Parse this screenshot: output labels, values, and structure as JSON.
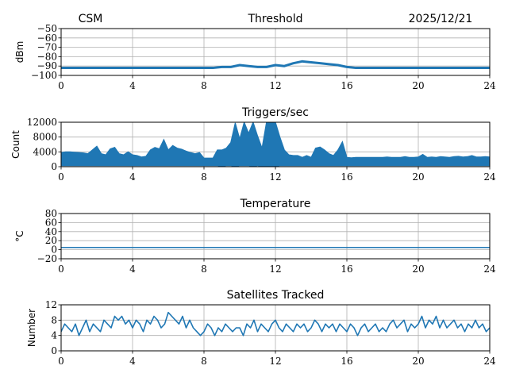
{
  "header": {
    "left": "CSM",
    "right": "2025/12/21"
  },
  "chart_data": [
    {
      "type": "line",
      "title": "Threshold",
      "ylabel": "dBm",
      "xlim": [
        0,
        24
      ],
      "ylim": [
        -100,
        -50
      ],
      "xticks": [
        "0",
        "4",
        "8",
        "12",
        "16",
        "20",
        "24"
      ],
      "yticks": [
        "−100",
        "−90",
        "−80",
        "−70",
        "−60",
        "−50"
      ],
      "ytick_values": [
        -100,
        -90,
        -80,
        -70,
        -60,
        -50
      ],
      "grid": true,
      "x_step": 0.5,
      "values": [
        -92,
        -92,
        -92,
        -92,
        -92,
        -92,
        -92,
        -92,
        -92,
        -92,
        -92,
        -92,
        -92,
        -92,
        -92,
        -92,
        -92,
        -92,
        -91,
        -91,
        -89,
        -90,
        -91,
        -91,
        -89,
        -90,
        -87,
        -85,
        -86,
        -87,
        -88,
        -89,
        -91,
        -92,
        -92,
        -92,
        -92,
        -92,
        -92,
        -92,
        -92,
        -92,
        -92,
        -92,
        -92,
        -92,
        -92,
        -92,
        -92
      ]
    },
    {
      "type": "area",
      "title": "Triggers/sec",
      "ylabel": "Count",
      "xlim": [
        0,
        24
      ],
      "ylim": [
        0,
        12000
      ],
      "xticks": [
        "0",
        "4",
        "8",
        "12",
        "16",
        "20",
        "24"
      ],
      "yticks": [
        "0",
        "4000",
        "8000",
        "12000"
      ],
      "ytick_values": [
        0,
        4000,
        8000,
        12000
      ],
      "grid": true,
      "x_step": 0.25,
      "upper": [
        3800,
        4000,
        4000,
        3900,
        3800,
        3700,
        3500,
        4500,
        5500,
        3500,
        3200,
        4800,
        5200,
        3500,
        3200,
        4000,
        3200,
        3000,
        2600,
        2800,
        4500,
        5200,
        4800,
        7300,
        4500,
        5700,
        5000,
        4700,
        4200,
        3800,
        3500,
        3800,
        2300,
        2300,
        2300,
        4500,
        4500,
        5000,
        6500,
        11800,
        7500,
        12000,
        9000,
        12000,
        8300,
        5000,
        12000,
        12000,
        12000,
        8000,
        4500,
        3200,
        3000,
        3000,
        2500,
        3000,
        2500,
        5000,
        5300,
        4500,
        3500,
        3000,
        4500,
        6700,
        2500,
        2400,
        2500,
        2500,
        2500,
        2500,
        2500,
        2500,
        2500,
        2600,
        2500,
        2500,
        2500,
        2700,
        2500,
        2500,
        2600,
        3300,
        2500,
        2600,
        2500,
        2700,
        2600,
        2500,
        2700,
        2800,
        2600,
        2700,
        3000,
        2600,
        2600,
        2700,
        2600
      ],
      "lower": [
        300,
        300,
        300,
        300,
        300,
        300,
        300,
        300,
        300,
        300,
        300,
        300,
        300,
        300,
        300,
        300,
        300,
        300,
        300,
        300,
        300,
        300,
        300,
        300,
        300,
        300,
        300,
        300,
        300,
        300,
        300,
        300,
        300,
        300,
        300,
        300,
        0,
        300,
        300,
        0,
        300,
        300,
        300,
        0,
        300,
        0,
        0,
        0,
        0,
        300,
        300,
        300,
        300,
        300,
        300,
        300,
        300,
        300,
        300,
        300,
        300,
        300,
        300,
        300,
        300,
        300,
        300,
        300,
        300,
        300,
        300,
        300,
        300,
        300,
        300,
        300,
        300,
        300,
        300,
        300,
        300,
        300,
        300,
        300,
        300,
        300,
        300,
        300,
        300,
        300,
        300,
        300,
        300,
        300,
        300,
        300,
        300
      ]
    },
    {
      "type": "line",
      "title": "Temperature",
      "ylabel": "°C",
      "xlim": [
        0,
        24
      ],
      "ylim": [
        -20,
        80
      ],
      "xticks": [
        "0",
        "4",
        "8",
        "12",
        "16",
        "20",
        "24"
      ],
      "yticks": [
        "−20",
        "0",
        "20",
        "40",
        "60",
        "80"
      ],
      "ytick_values": [
        -20,
        0,
        20,
        40,
        60,
        80
      ],
      "grid": true,
      "x_step": 6,
      "values": [
        5,
        5,
        5,
        5,
        5
      ]
    },
    {
      "type": "line",
      "title": "Satellites Tracked",
      "ylabel": "Number",
      "xlim": [
        0,
        24
      ],
      "ylim": [
        0,
        12
      ],
      "xticks": [
        "0",
        "4",
        "8",
        "12",
        "16",
        "20",
        "24"
      ],
      "yticks": [
        "0",
        "4",
        "8",
        "12"
      ],
      "ytick_values": [
        0,
        4,
        8,
        12
      ],
      "grid": true,
      "x_step": 0.2,
      "values": [
        5,
        7,
        6,
        5,
        7,
        4,
        6,
        8,
        5,
        7,
        6,
        5,
        8,
        7,
        6,
        9,
        8,
        9,
        7,
        8,
        6,
        8,
        7,
        5,
        8,
        7,
        9,
        8,
        6,
        7,
        10,
        9,
        8,
        7,
        9,
        6,
        8,
        6,
        5,
        4,
        5,
        7,
        6,
        4,
        6,
        5,
        7,
        6,
        5,
        6,
        6,
        4,
        7,
        6,
        8,
        5,
        7,
        6,
        5,
        7,
        8,
        6,
        5,
        7,
        6,
        5,
        7,
        6,
        7,
        5,
        6,
        8,
        7,
        5,
        7,
        6,
        7,
        5,
        7,
        6,
        5,
        7,
        6,
        4,
        6,
        7,
        5,
        6,
        7,
        5,
        6,
        5,
        7,
        8,
        6,
        7,
        8,
        5,
        7,
        6,
        7,
        9,
        6,
        8,
        7,
        9,
        6,
        8,
        6,
        7,
        8,
        6,
        7,
        5,
        7,
        6,
        8,
        6,
        7,
        5,
        6
      ]
    }
  ],
  "colors": {
    "line": "#1f77b4",
    "grid": "#b0b0b0"
  }
}
